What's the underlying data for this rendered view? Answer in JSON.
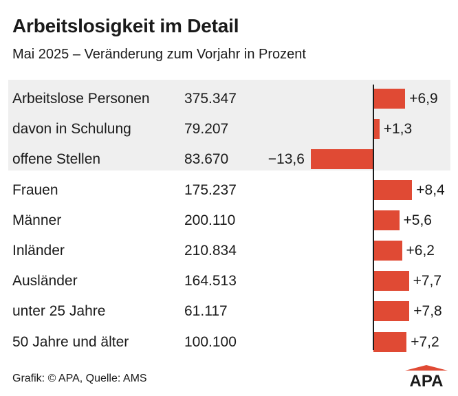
{
  "header": {
    "title": "Arbeitslosigkeit im Detail",
    "subtitle": "Mai 2025 – Veränderung zum Vorjahr in Prozent"
  },
  "chart_data": {
    "type": "bar",
    "orientation": "horizontal",
    "categories": [
      "Arbeitslose Personen",
      "davon in Schulung",
      "offene Stellen",
      "Frauen",
      "Männer",
      "Inländer",
      "Ausländer",
      "unter 25 Jahre",
      "50 Jahre und älter"
    ],
    "absolute_values": [
      "375.347",
      "79.207",
      "83.670",
      "175.237",
      "200.110",
      "210.834",
      "164.513",
      "61.117",
      "100.100"
    ],
    "values": [
      6.9,
      1.3,
      -13.6,
      8.4,
      5.6,
      6.2,
      7.7,
      7.8,
      7.2
    ],
    "value_labels": [
      "+6,9",
      "+1,3",
      "−13,6",
      "+8,4",
      "+5,6",
      "+6,2",
      "+7,7",
      "+7,8",
      "+7,2"
    ],
    "highlighted_rows": [
      0,
      1,
      2
    ],
    "colors": {
      "bar": "#e04a34",
      "highlight_background": "#efefef"
    }
  },
  "footer": {
    "source": "Grafik: © APA, Quelle: AMS",
    "logo_text": "APA"
  }
}
